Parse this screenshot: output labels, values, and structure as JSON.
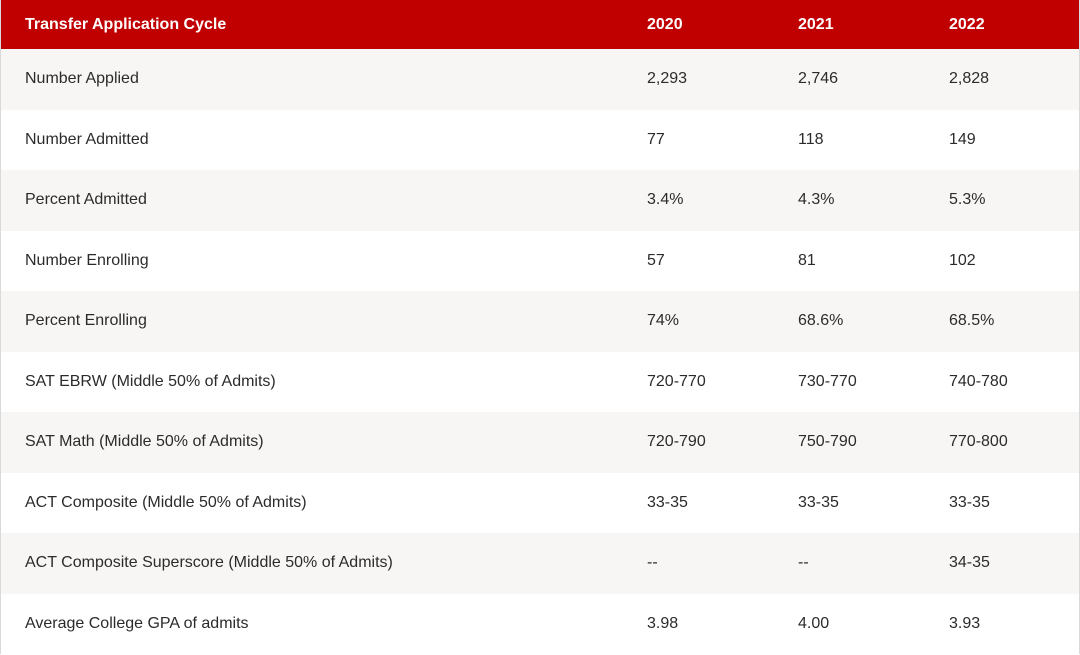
{
  "table": {
    "headers": [
      "Transfer Application Cycle",
      "2020",
      "2021",
      "2022"
    ],
    "rows": [
      [
        "Number Applied",
        "2,293",
        "2,746",
        "2,828"
      ],
      [
        "Number Admitted",
        "77",
        "118",
        "149"
      ],
      [
        "Percent Admitted",
        "3.4%",
        "4.3%",
        "5.3%"
      ],
      [
        "Number Enrolling",
        "57",
        "81",
        "102"
      ],
      [
        "Percent Enrolling",
        "74%",
        "68.6%",
        "68.5%"
      ],
      [
        "SAT EBRW (Middle 50% of Admits)",
        "720-770",
        "730-770",
        "740-780"
      ],
      [
        "SAT Math (Middle 50% of Admits)",
        "720-790",
        "750-790",
        "770-800"
      ],
      [
        "ACT Composite (Middle 50% of Admits)",
        "33-35",
        "33-35",
        "33-35"
      ],
      [
        "ACT Composite Superscore (Middle 50% of Admits)",
        "--",
        "--",
        "34-35"
      ],
      [
        "Average College GPA of admits",
        "3.98",
        "4.00",
        "3.93"
      ]
    ]
  },
  "colors": {
    "header_background": "#c00000",
    "header_text": "#ffffff",
    "row_stripe": "#f7f6f4"
  }
}
